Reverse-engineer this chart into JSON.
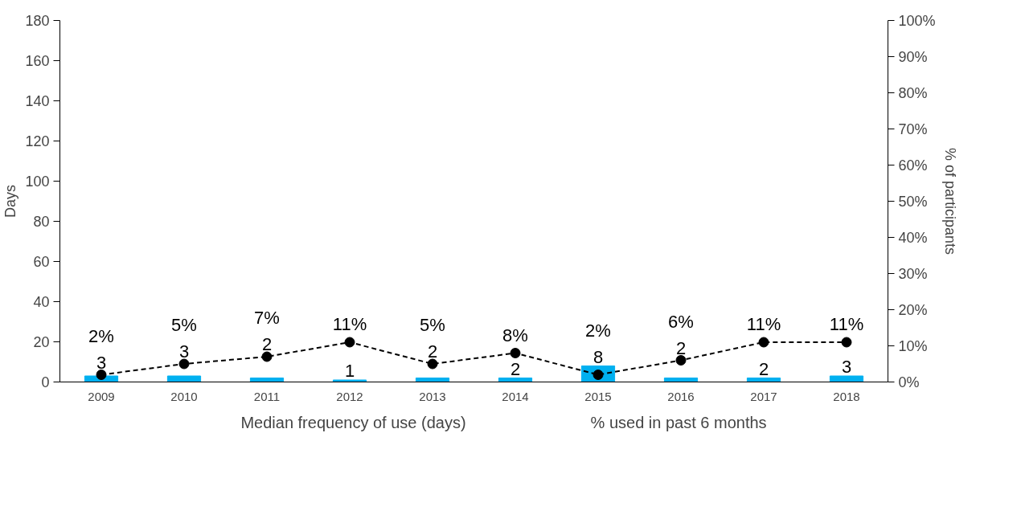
{
  "chart_data": {
    "type": "bar",
    "categories": [
      "2009",
      "2010",
      "2011",
      "2012",
      "2013",
      "2014",
      "2015",
      "2016",
      "2017",
      "2018"
    ],
    "ylabel": "Days",
    "y2label": "% of participants",
    "ylim": [
      0,
      180
    ],
    "yticks": [
      0,
      20,
      40,
      60,
      80,
      100,
      120,
      140,
      160,
      180
    ],
    "y2lim": [
      0,
      100
    ],
    "y2ticks": [
      {
        "value": 0,
        "label": "0%"
      },
      {
        "value": 10,
        "label": "10%"
      },
      {
        "value": 20,
        "label": "20%"
      },
      {
        "value": 30,
        "label": "30%"
      },
      {
        "value": 40,
        "label": "40%"
      },
      {
        "value": 50,
        "label": "50%"
      },
      {
        "value": 60,
        "label": "60%"
      },
      {
        "value": 70,
        "label": "70%"
      },
      {
        "value": 80,
        "label": "80%"
      },
      {
        "value": 90,
        "label": "90%"
      },
      {
        "value": 100,
        "label": "100%"
      }
    ],
    "grid": false,
    "legend": "bottom",
    "series": [
      {
        "name": "Median frequency of use (days)",
        "color": "#00b0f0",
        "values": [
          3,
          3,
          2,
          1,
          2,
          2,
          8,
          2,
          2,
          3
        ],
        "value_labels": [
          "3",
          "3",
          "2",
          "1",
          "2",
          "2",
          "8",
          "2",
          "2",
          "3"
        ]
      },
      {
        "name": "% used in past 6 months",
        "type": "line",
        "axis": "y2",
        "color": "#000000",
        "marker": "circle",
        "line_style": "dashed",
        "values": [
          2,
          5,
          7,
          11,
          5,
          8,
          2,
          6,
          11,
          11
        ],
        "value_labels": [
          "2%",
          "5%",
          "7%",
          "11%",
          "5%",
          "8%",
          "2%",
          "6%",
          "11%",
          "11%"
        ]
      }
    ]
  }
}
